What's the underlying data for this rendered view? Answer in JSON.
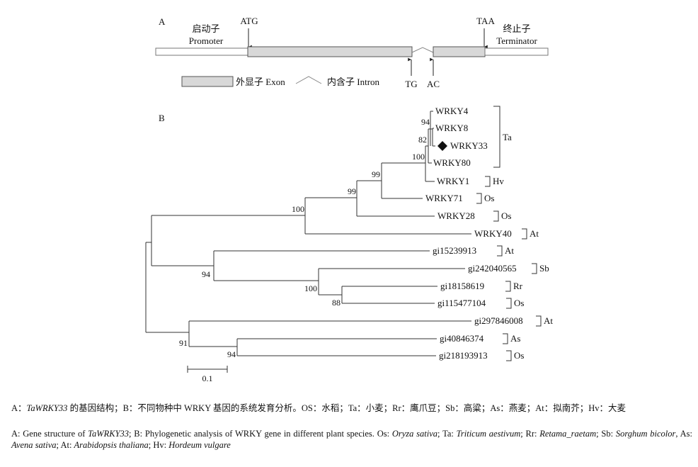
{
  "gene_structure": {
    "panel_label": "A",
    "promoter_cn": "启动子",
    "promoter_en": "Promoter",
    "start_codon": "ATG",
    "stop_codon": "TAA",
    "terminator_cn": "终止子",
    "terminator_en": "Terminator",
    "splice_donor": "TG",
    "splice_acceptor": "AC",
    "legend_exon": "外显子 Exon",
    "legend_intron": "内含子 Intron",
    "colors": {
      "exon_fill": "#d8d8d8",
      "line": "#333333"
    }
  },
  "tree": {
    "panel_label": "B",
    "taxa": [
      {
        "id": "wrky4",
        "name": "WRKY4"
      },
      {
        "id": "wrky8",
        "name": "WRKY8"
      },
      {
        "id": "wrky33",
        "name": "WRKY33",
        "marker": "diamond"
      },
      {
        "id": "wrky80",
        "name": "WRKY80"
      },
      {
        "id": "wrky1",
        "name": "WRKY1"
      },
      {
        "id": "wrky71",
        "name": "WRKY71"
      },
      {
        "id": "wrky28",
        "name": "WRKY28"
      },
      {
        "id": "wrky40",
        "name": "WRKY40"
      },
      {
        "id": "gi15239913",
        "name": "gi15239913"
      },
      {
        "id": "gi242040565",
        "name": "gi242040565"
      },
      {
        "id": "gi18158619",
        "name": "gi18158619"
      },
      {
        "id": "gi115477104",
        "name": "gi115477104"
      },
      {
        "id": "gi297846008",
        "name": "gi297846008"
      },
      {
        "id": "gi40846374",
        "name": "gi40846374"
      },
      {
        "id": "gi218193913",
        "name": "gi218193913"
      }
    ],
    "groups": [
      {
        "id": "ta",
        "label": "Ta",
        "members": [
          "wrky4",
          "wrky80"
        ]
      },
      {
        "id": "hv",
        "label": "Hv",
        "members": [
          "wrky1"
        ]
      },
      {
        "id": "os1",
        "label": "Os",
        "members": [
          "wrky71"
        ]
      },
      {
        "id": "os2",
        "label": "Os",
        "members": [
          "wrky28"
        ]
      },
      {
        "id": "at1",
        "label": "At",
        "members": [
          "wrky40"
        ]
      },
      {
        "id": "at2",
        "label": "At",
        "members": [
          "gi15239913"
        ]
      },
      {
        "id": "sb",
        "label": "Sb",
        "members": [
          "gi242040565"
        ]
      },
      {
        "id": "rr",
        "label": "Rr",
        "members": [
          "gi18158619"
        ]
      },
      {
        "id": "os3",
        "label": "Os",
        "members": [
          "gi115477104"
        ]
      },
      {
        "id": "at3",
        "label": "At",
        "members": [
          "gi297846008"
        ]
      },
      {
        "id": "as",
        "label": "As",
        "members": [
          "gi40846374"
        ]
      },
      {
        "id": "os4",
        "label": "Os",
        "members": [
          "gi218193913"
        ]
      }
    ],
    "bootstrap": [
      "94",
      "82",
      "100",
      "99",
      "99",
      "100",
      "94",
      "100",
      "88",
      "91",
      "94"
    ],
    "scale_bar": {
      "label": "0.1",
      "length": 0.1
    }
  },
  "caption": {
    "cn": {
      "part1": "A：",
      "gene": "TaWRKY33",
      "part2": " 的基因结构；B：不同物种中 WRKY 基因的系统发育分析。OS：水稻；Ta：小麦；Rr：鹰爪豆；Sb：高粱；As：燕麦；At：拟南芥；Hv：大麦"
    },
    "en": {
      "part1": "A: Gene structure of ",
      "gene": "TaWRKY33",
      "part2": "; B: Phylogenetic analysis of WRKY gene in different plant species. Os: ",
      "os": "Oryza sativa",
      "sep1": "; Ta: ",
      "ta": "Triticum aestivum",
      "sep2": "; Rr: ",
      "rr": "Retama_raetam",
      "sep3": "; Sb: ",
      "sb": "Sorghum bicolor",
      "sep4": ", As: ",
      "as": "Avena sativa",
      "sep5": "; At: ",
      "at": "Arabidopsis thaliana",
      "sep6": "; Hv: ",
      "hv": "Hordeum vulgare"
    }
  }
}
